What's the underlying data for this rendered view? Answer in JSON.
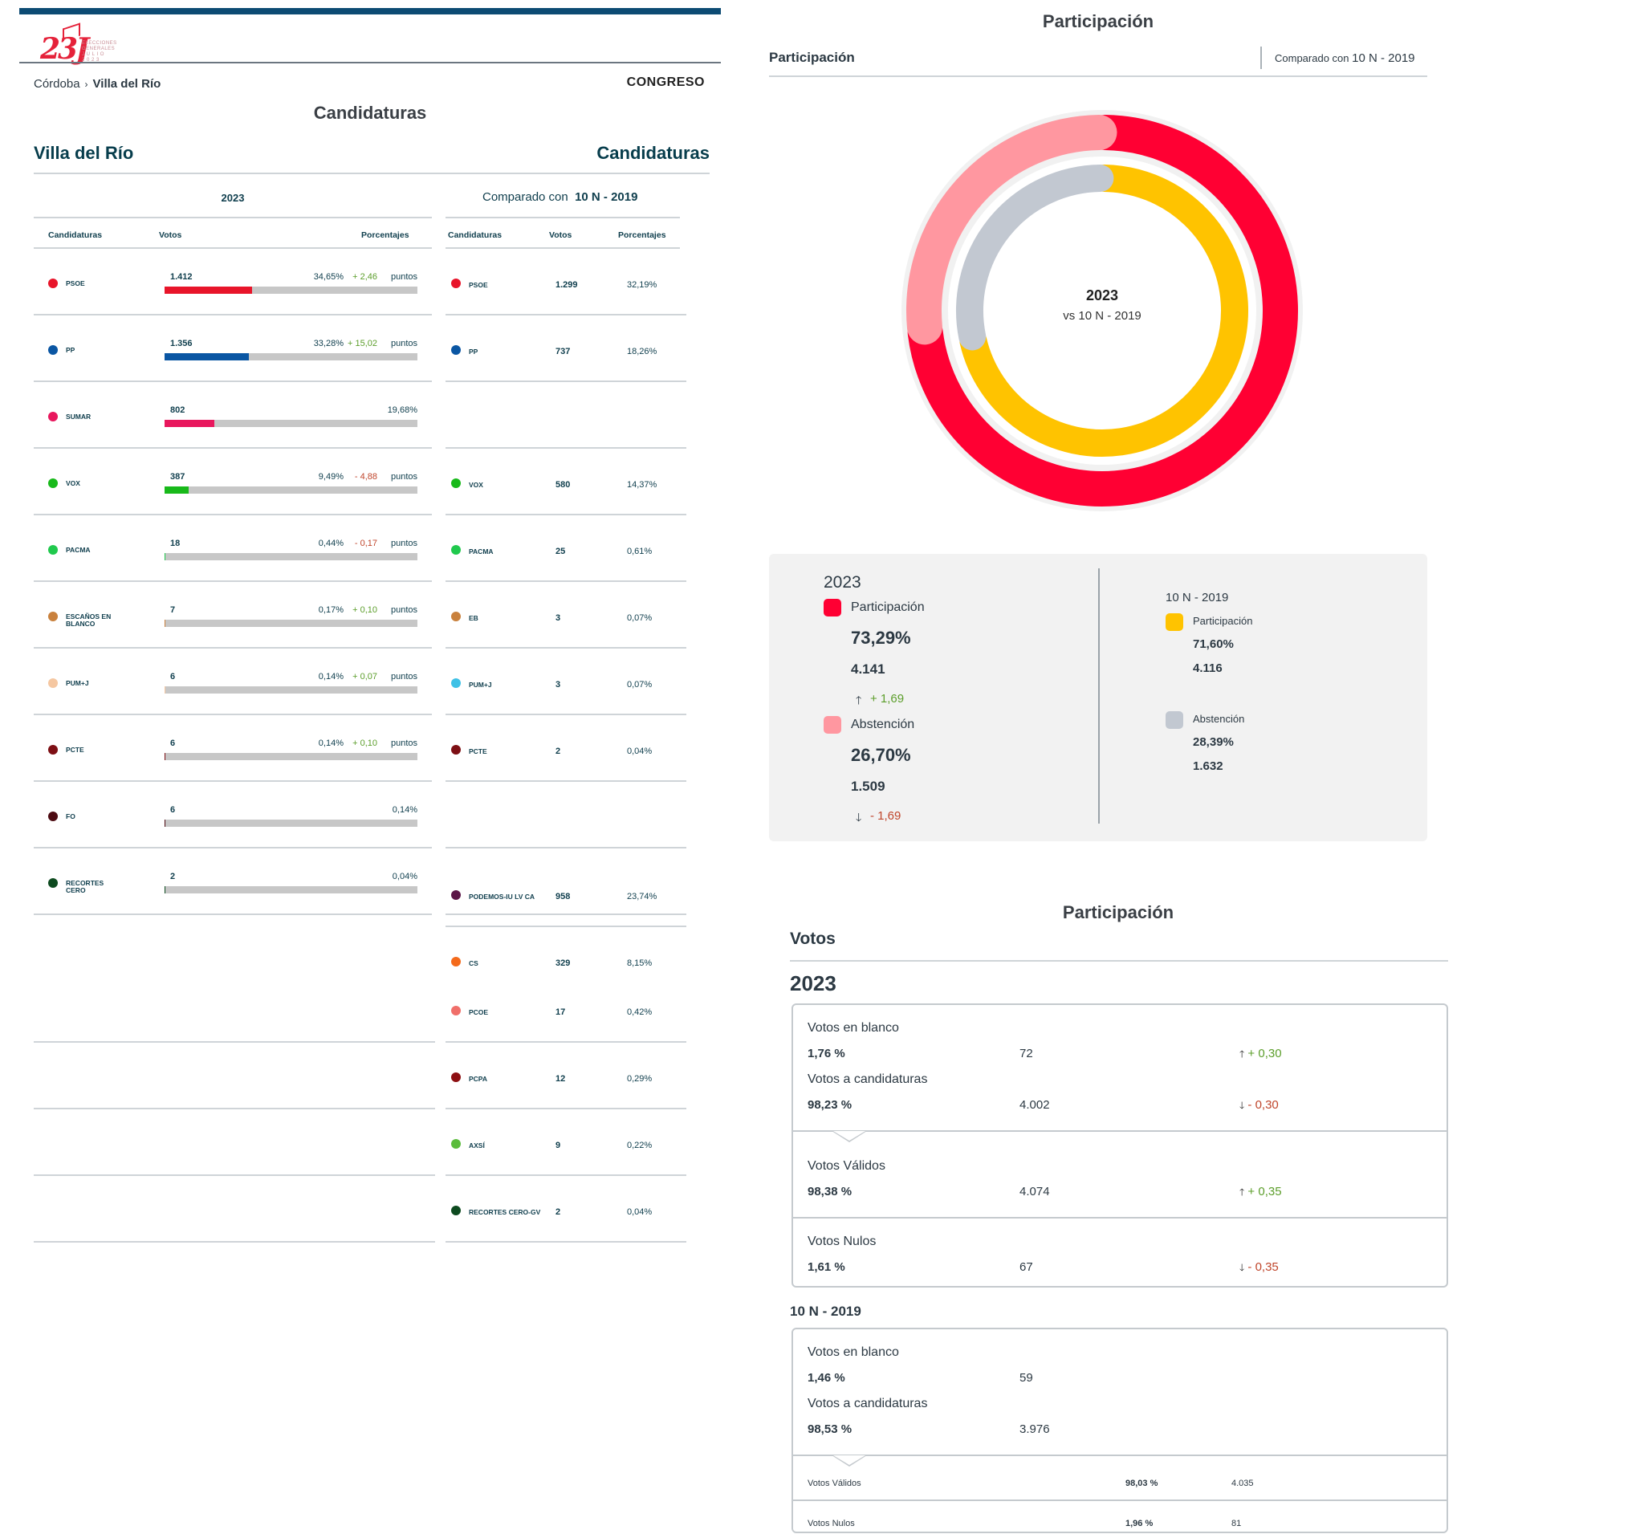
{
  "logo": {
    "main": "23J",
    "small_lines": [
      "ELECCIONES",
      "GENERALES",
      "J U L I O",
      "2 0 2 3"
    ]
  },
  "breadcrumb": {
    "province": "Córdoba",
    "separator": "›",
    "municipality": "Villa del Río"
  },
  "chamber": "CONGRESO",
  "candidaturas_title": "Candidaturas",
  "place_name": "Villa del Río",
  "candidaturas_right": "Candidaturas",
  "year_head": "2023",
  "compare_head": {
    "prefix": "Comparado con",
    "value": "10 N - 2019"
  },
  "column_headers": {
    "current": [
      "Candidaturas",
      "Votos",
      "Porcentajes"
    ],
    "previous": [
      "Candidaturas",
      "Votos",
      "Porcentajes"
    ]
  },
  "colors": {
    "PSOE": "#e8152a",
    "PP": "#0a56a3",
    "SUMAR": "#e8175d",
    "VOX": "#18b91a",
    "PACMA": "#20c94d",
    "EB": "#c9813d",
    "PUMJ_2023": "#f5c7a1",
    "PUMJ_2019": "#3fc1e6",
    "PCTE": "#7d0f14",
    "FO": "#4d0b12",
    "RECORTES": "#0d4a1f",
    "PODEMOS": "#5b1547",
    "CS": "#f46a1b",
    "PCOE": "#f06f6a",
    "PCPA": "#8d0f12",
    "AXSI": "#5bbc3c",
    "donut_participacion_2023": "#ff0033",
    "donut_abstencion_2023": "#ff97a0",
    "donut_participacion_2019": "#ffc300",
    "donut_abstencion_2019": "#c2c8d1",
    "positive": "#5c9e2b",
    "negative": "#c0462c"
  },
  "results_2023": [
    {
      "name": "PSOE",
      "votes": "1.412",
      "pct": "34,65%",
      "diff": "+ 2,46",
      "diff_sign": "pos",
      "unit": "puntos",
      "share": 34.65,
      "color": "#e8152a"
    },
    {
      "name": "PP",
      "votes": "1.356",
      "pct": "33,28%",
      "diff": "+ 15,02",
      "diff_sign": "pos",
      "unit": "puntos",
      "share": 33.28,
      "color": "#0a56a3"
    },
    {
      "name": "SUMAR",
      "votes": "802",
      "pct": "19,68%",
      "diff": "",
      "diff_sign": "",
      "unit": "",
      "share": 19.68,
      "color": "#e8175d"
    },
    {
      "name": "VOX",
      "votes": "387",
      "pct": "9,49%",
      "diff": "- 4,88",
      "diff_sign": "neg",
      "unit": "puntos",
      "share": 9.49,
      "color": "#18b91a"
    },
    {
      "name": "PACMA",
      "votes": "18",
      "pct": "0,44%",
      "diff": "- 0,17",
      "diff_sign": "neg",
      "unit": "puntos",
      "share": 0.44,
      "color": "#20c94d"
    },
    {
      "name": "ESCAÑOS EN BLANCO",
      "votes": "7",
      "pct": "0,17%",
      "diff": "+ 0,10",
      "diff_sign": "pos",
      "unit": "puntos",
      "share": 0.17,
      "color": "#c9813d"
    },
    {
      "name": "PUM+J",
      "votes": "6",
      "pct": "0,14%",
      "diff": "+ 0,07",
      "diff_sign": "pos",
      "unit": "puntos",
      "share": 0.14,
      "color": "#f5c7a1"
    },
    {
      "name": "PCTE",
      "votes": "6",
      "pct": "0,14%",
      "diff": "+ 0,10",
      "diff_sign": "pos",
      "unit": "puntos",
      "share": 0.14,
      "color": "#7d0f14"
    },
    {
      "name": "FO",
      "votes": "6",
      "pct": "0,14%",
      "diff": "",
      "diff_sign": "",
      "unit": "",
      "share": 0.14,
      "color": "#4d0b12"
    },
    {
      "name": "RECORTES CERO",
      "votes": "2",
      "pct": "0,04%",
      "diff": "",
      "diff_sign": "",
      "unit": "",
      "share": 0.04,
      "color": "#0d4a1f"
    }
  ],
  "results_2019": [
    {
      "name": "PSOE",
      "votes": "1.299",
      "pct": "32,19%",
      "color": "#e8152a"
    },
    {
      "name": "PP",
      "votes": "737",
      "pct": "18,26%",
      "color": "#0a56a3"
    },
    {
      "name": "",
      "votes": "",
      "pct": "",
      "color": ""
    },
    {
      "name": "VOX",
      "votes": "580",
      "pct": "14,37%",
      "color": "#18b91a"
    },
    {
      "name": "PACMA",
      "votes": "25",
      "pct": "0,61%",
      "color": "#20c94d"
    },
    {
      "name": "EB",
      "votes": "3",
      "pct": "0,07%",
      "color": "#c9813d"
    },
    {
      "name": "PUM+J",
      "votes": "3",
      "pct": "0,07%",
      "color": "#3fc1e6"
    },
    {
      "name": "PCTE",
      "votes": "2",
      "pct": "0,04%",
      "color": "#7d0f14"
    },
    {
      "name": "",
      "votes": "",
      "pct": "",
      "color": ""
    },
    {
      "name": "",
      "votes": "",
      "pct": "",
      "color": ""
    },
    {
      "name": "PODEMOS-IU LV CA",
      "votes": "958",
      "pct": "23,74%",
      "color": "#5b1547"
    },
    {
      "name": "Cs",
      "votes": "329",
      "pct": "8,15%",
      "color": "#f46a1b"
    },
    {
      "name": "PCOE",
      "votes": "17",
      "pct": "0,42%",
      "color": "#f06f6a"
    },
    {
      "name": "PCPA",
      "votes": "12",
      "pct": "0,29%",
      "color": "#8d0f12"
    },
    {
      "name": "AxSÍ",
      "votes": "9",
      "pct": "0,22%",
      "color": "#5bbc3c"
    },
    {
      "name": "RECORTES CERO-GV",
      "votes": "2",
      "pct": "0,04%",
      "color": "#0d4a1f"
    }
  ],
  "participacion": {
    "title": "Participación",
    "subtitle": "Participación",
    "compare_prefix": "Comparado con",
    "compare_value": "10 N - 2019",
    "donut_center_year": "2023",
    "donut_center_vs": "vs 10 N - 2019",
    "donut": {
      "outer_2023": {
        "participacion": 73.29,
        "abstencion": 26.7
      },
      "inner_2019": {
        "participacion": 71.6,
        "abstencion": 28.39
      }
    },
    "panel_2023": {
      "year": "2023",
      "participacion_label": "Participación",
      "participacion_pct": "73,29%",
      "participacion_votes": "4.141",
      "participacion_diff_arrow": "🡑",
      "participacion_diff": "+ 1,69",
      "abstencion_label": "Abstención",
      "abstencion_pct": "26,70%",
      "abstencion_votes": "1.509",
      "abstencion_diff_arrow": "🡓",
      "abstencion_diff": "- 1,69"
    },
    "panel_2019": {
      "year": "10 N - 2019",
      "participacion_label": "Participación",
      "participacion_pct": "71,60%",
      "participacion_votes": "4.116",
      "abstencion_label": "Abstención",
      "abstencion_pct": "28,39%",
      "abstencion_votes": "1.632"
    }
  },
  "votos": {
    "title": "Participación",
    "subtitle": "Votos",
    "year_2023": "2023",
    "box_2023": {
      "blanco": {
        "label": "Votos en blanco",
        "pct": "1,76 %",
        "votes": "72",
        "arrow": "🡑",
        "diff": "+ 0,30"
      },
      "candidaturas": {
        "label": "Votos a candidaturas",
        "pct": "98,23 %",
        "votes": "4.002",
        "arrow": "🡓",
        "diff": "- 0,30"
      },
      "validos": {
        "label": "Votos Válidos",
        "pct": "98,38 %",
        "votes": "4.074",
        "arrow": "🡑",
        "diff": "+ 0,35"
      },
      "nulos": {
        "label": "Votos Nulos",
        "pct": "1,61 %",
        "votes": "67",
        "arrow": "🡓",
        "diff": "- 0,35"
      }
    },
    "year_2019": "10 N - 2019",
    "box_2019": {
      "blanco": {
        "label": "Votos en blanco",
        "pct": "1,46 %",
        "votes": "59"
      },
      "candidaturas": {
        "label": "Votos a candidaturas",
        "pct": "98,53 %",
        "votes": "3.976"
      },
      "validos": {
        "label": "Votos Válidos",
        "pct": "98,03 %",
        "votes": "4.035"
      },
      "nulos": {
        "label": "Votos Nulos",
        "pct": "1,96 %",
        "votes": "81"
      }
    }
  }
}
